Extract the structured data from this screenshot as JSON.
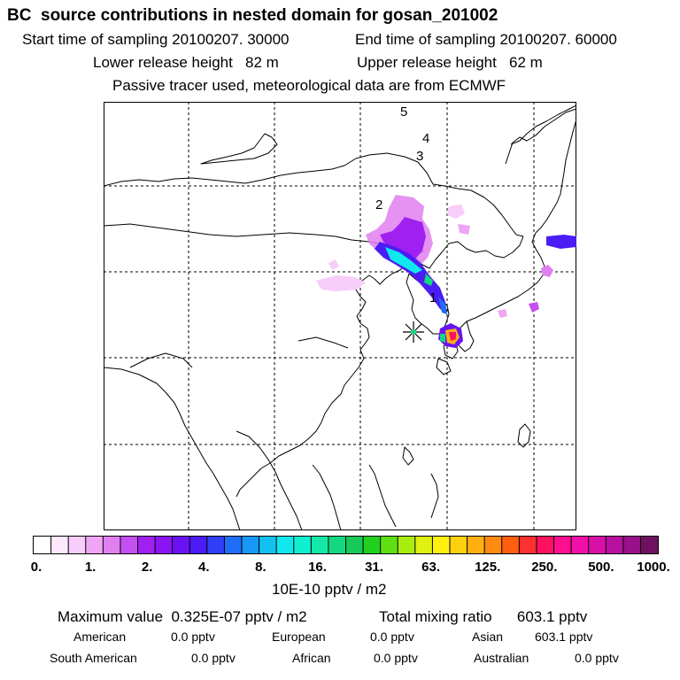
{
  "header": {
    "title": "BC  source contributions in nested domain for gosan_201002",
    "start_time": "Start time of sampling 20100207. 30000",
    "end_time": "End time of sampling 20100207. 60000",
    "lower_release": "Lower release height   82 m",
    "upper_release": "Upper release height   62 m",
    "tracer_note": "Passive tracer used, meteorological data are from ECMWF"
  },
  "map": {
    "trajectory_labels": [
      "5",
      "4",
      "3",
      "2",
      "1"
    ],
    "receptor_marker": "star-icon"
  },
  "colorbar": {
    "tick_labels": [
      "0.",
      "1.",
      "2.",
      "4.",
      "8.",
      "16.",
      "31.",
      "63.",
      "125.",
      "250.",
      "500.",
      "1000."
    ],
    "colors": [
      "#ffffff",
      "#fde8fd",
      "#f7cdf9",
      "#eea6f4",
      "#e07ff0",
      "#c54ff0",
      "#a020f0",
      "#8a14f2",
      "#6a12f4",
      "#4b1cf6",
      "#2f40f8",
      "#1f6ef8",
      "#1898f6",
      "#12c0f2",
      "#10e8ee",
      "#10f0d0",
      "#14e8a8",
      "#14d880",
      "#18c858",
      "#20d020",
      "#60e010",
      "#a8ec10",
      "#e0f010",
      "#fff010",
      "#ffd010",
      "#ffb010",
      "#ff8a10",
      "#ff6010",
      "#ff3030",
      "#ff1060",
      "#ff1090",
      "#f010a8",
      "#d810a8",
      "#b810a0",
      "#98108a",
      "#701060"
    ],
    "unit": "10E-10 pptv / m2"
  },
  "stats": {
    "maximum_value": "Maximum value  0.325E-07 pptv / m2",
    "total_mixing_ratio": "Total mixing ratio      603.1 pptv",
    "american_label": "American",
    "american_value": "0.0 pptv",
    "european_label": "European",
    "european_value": "0.0 pptv",
    "asian_label": "Asian",
    "asian_value": "603.1 pptv",
    "south_american_label": "South American",
    "south_american_value": "0.0 pptv",
    "african_label": "African",
    "african_value": "0.0 pptv",
    "australian_label": "Australian",
    "australian_value": "0.0 pptv"
  }
}
